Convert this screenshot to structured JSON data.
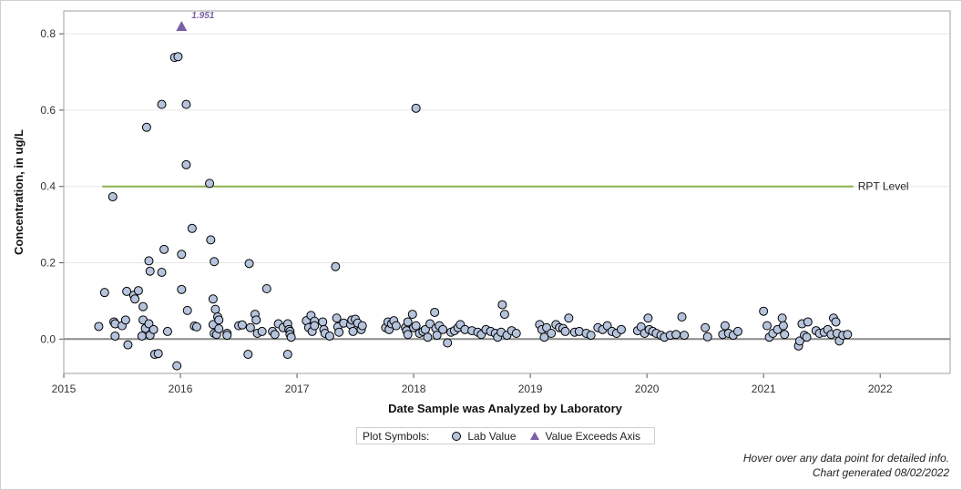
{
  "chart_data": {
    "type": "scatter",
    "xlabel": "Date Sample was Analyzed by Laboratory",
    "ylabel": "Concentration, in ug/L",
    "xlim": [
      2015.0,
      2022.6
    ],
    "ylim": [
      -0.09,
      0.86
    ],
    "x_ticks": [
      2015,
      2016,
      2017,
      2018,
      2019,
      2020,
      2021,
      2022
    ],
    "y_ticks": [
      0.0,
      0.2,
      0.4,
      0.6,
      0.8
    ],
    "y_tick_labels": [
      "0.0",
      "0.2",
      "0.4",
      "0.6",
      "0.8"
    ],
    "grid": "horizontal",
    "reference_line": {
      "label": "RPT Level",
      "y": 0.4,
      "x_start": 2015.33,
      "x_end": 2021.77,
      "color": "#8db04b"
    },
    "zero_line": 0.0,
    "exceeds_axis": [
      {
        "x": 2016.01,
        "y": 1.951,
        "label": "1.951"
      }
    ],
    "marker_fill": "#b5c3dc",
    "exceed_color": "#7a5fa8",
    "series": [
      {
        "name": "Lab Value",
        "points": [
          [
            2015.3,
            0.033
          ],
          [
            2015.35,
            0.122
          ],
          [
            2015.42,
            0.373
          ],
          [
            2015.43,
            0.045
          ],
          [
            2015.44,
            0.04
          ],
          [
            2015.44,
            0.008
          ],
          [
            2015.5,
            0.035
          ],
          [
            2015.53,
            0.05
          ],
          [
            2015.54,
            0.125
          ],
          [
            2015.55,
            -0.015
          ],
          [
            2015.6,
            0.115
          ],
          [
            2015.61,
            0.105
          ],
          [
            2015.64,
            0.127
          ],
          [
            2015.67,
            0.008
          ],
          [
            2015.68,
            0.085
          ],
          [
            2015.68,
            0.05
          ],
          [
            2015.7,
            0.028
          ],
          [
            2015.71,
            0.555
          ],
          [
            2015.73,
            0.205
          ],
          [
            2015.73,
            0.04
          ],
          [
            2015.74,
            0.178
          ],
          [
            2015.74,
            0.01
          ],
          [
            2015.77,
            0.025
          ],
          [
            2015.78,
            -0.04
          ],
          [
            2015.81,
            -0.038
          ],
          [
            2015.84,
            0.615
          ],
          [
            2015.84,
            0.175
          ],
          [
            2015.86,
            0.235
          ],
          [
            2015.89,
            0.02
          ],
          [
            2015.95,
            0.738
          ],
          [
            2015.97,
            -0.07
          ],
          [
            2015.98,
            0.74
          ],
          [
            2016.01,
            0.222
          ],
          [
            2016.01,
            0.13
          ],
          [
            2016.05,
            0.615
          ],
          [
            2016.05,
            0.457
          ],
          [
            2016.06,
            0.075
          ],
          [
            2016.1,
            0.29
          ],
          [
            2016.12,
            0.034
          ],
          [
            2016.14,
            0.032
          ],
          [
            2016.25,
            0.408
          ],
          [
            2016.26,
            0.26
          ],
          [
            2016.28,
            0.105
          ],
          [
            2016.28,
            0.038
          ],
          [
            2016.29,
            0.015
          ],
          [
            2016.29,
            0.203
          ],
          [
            2016.3,
            0.078
          ],
          [
            2016.31,
            0.012
          ],
          [
            2016.32,
            0.058
          ],
          [
            2016.33,
            0.027
          ],
          [
            2016.33,
            0.05
          ],
          [
            2016.4,
            0.015
          ],
          [
            2016.4,
            0.01
          ],
          [
            2016.5,
            0.035
          ],
          [
            2016.53,
            0.037
          ],
          [
            2016.58,
            -0.04
          ],
          [
            2016.59,
            0.198
          ],
          [
            2016.6,
            0.03
          ],
          [
            2016.64,
            0.065
          ],
          [
            2016.65,
            0.05
          ],
          [
            2016.66,
            0.015
          ],
          [
            2016.7,
            0.02
          ],
          [
            2016.74,
            0.132
          ],
          [
            2016.79,
            0.02
          ],
          [
            2016.81,
            0.012
          ],
          [
            2016.84,
            0.04
          ],
          [
            2016.88,
            0.03
          ],
          [
            2016.92,
            0.04
          ],
          [
            2016.92,
            -0.04
          ],
          [
            2016.93,
            0.025
          ],
          [
            2016.94,
            0.02
          ],
          [
            2016.94,
            0.012
          ],
          [
            2016.95,
            0.005
          ],
          [
            2017.08,
            0.048
          ],
          [
            2017.1,
            0.03
          ],
          [
            2017.12,
            0.062
          ],
          [
            2017.13,
            0.02
          ],
          [
            2017.15,
            0.047
          ],
          [
            2017.15,
            0.035
          ],
          [
            2017.22,
            0.045
          ],
          [
            2017.23,
            0.025
          ],
          [
            2017.24,
            0.015
          ],
          [
            2017.28,
            0.008
          ],
          [
            2017.33,
            0.19
          ],
          [
            2017.34,
            0.055
          ],
          [
            2017.35,
            0.032
          ],
          [
            2017.36,
            0.018
          ],
          [
            2017.4,
            0.042
          ],
          [
            2017.46,
            0.038
          ],
          [
            2017.47,
            0.05
          ],
          [
            2017.48,
            0.02
          ],
          [
            2017.5,
            0.052
          ],
          [
            2017.52,
            0.042
          ],
          [
            2017.55,
            0.025
          ],
          [
            2017.56,
            0.035
          ],
          [
            2017.76,
            0.03
          ],
          [
            2017.78,
            0.045
          ],
          [
            2017.79,
            0.025
          ],
          [
            2017.81,
            0.04
          ],
          [
            2017.83,
            0.048
          ],
          [
            2017.85,
            0.035
          ],
          [
            2017.93,
            0.03
          ],
          [
            2017.94,
            0.022
          ],
          [
            2017.95,
            0.045
          ],
          [
            2017.95,
            0.012
          ],
          [
            2017.99,
            0.065
          ],
          [
            2018.0,
            0.03
          ],
          [
            2018.02,
            0.035
          ],
          [
            2018.02,
            0.605
          ],
          [
            2018.05,
            0.015
          ],
          [
            2018.08,
            0.02
          ],
          [
            2018.1,
            0.025
          ],
          [
            2018.12,
            0.005
          ],
          [
            2018.14,
            0.04
          ],
          [
            2018.18,
            0.07
          ],
          [
            2018.19,
            0.028
          ],
          [
            2018.2,
            0.01
          ],
          [
            2018.22,
            0.035
          ],
          [
            2018.25,
            0.025
          ],
          [
            2018.29,
            -0.01
          ],
          [
            2018.32,
            0.018
          ],
          [
            2018.35,
            0.022
          ],
          [
            2018.38,
            0.03
          ],
          [
            2018.4,
            0.038
          ],
          [
            2018.44,
            0.025
          ],
          [
            2018.5,
            0.022
          ],
          [
            2018.55,
            0.018
          ],
          [
            2018.58,
            0.012
          ],
          [
            2018.62,
            0.025
          ],
          [
            2018.66,
            0.02
          ],
          [
            2018.7,
            0.015
          ],
          [
            2018.72,
            0.005
          ],
          [
            2018.75,
            0.018
          ],
          [
            2018.76,
            0.09
          ],
          [
            2018.78,
            0.065
          ],
          [
            2018.8,
            0.01
          ],
          [
            2018.84,
            0.022
          ],
          [
            2018.88,
            0.015
          ],
          [
            2019.08,
            0.038
          ],
          [
            2019.1,
            0.025
          ],
          [
            2019.12,
            0.005
          ],
          [
            2019.14,
            0.03
          ],
          [
            2019.18,
            0.015
          ],
          [
            2019.22,
            0.038
          ],
          [
            2019.25,
            0.03
          ],
          [
            2019.28,
            0.028
          ],
          [
            2019.3,
            0.02
          ],
          [
            2019.33,
            0.055
          ],
          [
            2019.38,
            0.018
          ],
          [
            2019.42,
            0.02
          ],
          [
            2019.48,
            0.015
          ],
          [
            2019.52,
            0.01
          ],
          [
            2019.58,
            0.03
          ],
          [
            2019.62,
            0.025
          ],
          [
            2019.66,
            0.035
          ],
          [
            2019.7,
            0.02
          ],
          [
            2019.74,
            0.015
          ],
          [
            2019.78,
            0.025
          ],
          [
            2019.92,
            0.022
          ],
          [
            2019.95,
            0.032
          ],
          [
            2019.98,
            0.015
          ],
          [
            2020.01,
            0.055
          ],
          [
            2020.02,
            0.025
          ],
          [
            2020.05,
            0.02
          ],
          [
            2020.08,
            0.015
          ],
          [
            2020.12,
            0.01
          ],
          [
            2020.15,
            0.005
          ],
          [
            2020.2,
            0.01
          ],
          [
            2020.25,
            0.012
          ],
          [
            2020.3,
            0.058
          ],
          [
            2020.32,
            0.01
          ],
          [
            2020.5,
            0.03
          ],
          [
            2020.52,
            0.006
          ],
          [
            2020.65,
            0.012
          ],
          [
            2020.67,
            0.035
          ],
          [
            2020.7,
            0.015
          ],
          [
            2020.74,
            0.01
          ],
          [
            2020.78,
            0.02
          ],
          [
            2021.0,
            0.073
          ],
          [
            2021.03,
            0.035
          ],
          [
            2021.05,
            0.005
          ],
          [
            2021.08,
            0.015
          ],
          [
            2021.12,
            0.025
          ],
          [
            2021.16,
            0.055
          ],
          [
            2021.17,
            0.035
          ],
          [
            2021.18,
            0.012
          ],
          [
            2021.3,
            -0.018
          ],
          [
            2021.31,
            -0.005
          ],
          [
            2021.33,
            0.04
          ],
          [
            2021.35,
            0.01
          ],
          [
            2021.37,
            0.005
          ],
          [
            2021.38,
            0.045
          ],
          [
            2021.45,
            0.022
          ],
          [
            2021.48,
            0.015
          ],
          [
            2021.52,
            0.018
          ],
          [
            2021.55,
            0.025
          ],
          [
            2021.58,
            0.012
          ],
          [
            2021.6,
            0.055
          ],
          [
            2021.62,
            0.045
          ],
          [
            2021.63,
            0.015
          ],
          [
            2021.65,
            -0.005
          ],
          [
            2021.68,
            0.01
          ],
          [
            2021.72,
            0.012
          ]
        ]
      }
    ]
  },
  "legend": {
    "title": "Plot Symbols:",
    "items": [
      "Lab Value",
      "Value Exceeds Axis"
    ]
  },
  "footer": {
    "hover_note": "Hover over any data point for detailed info.",
    "generated": "Chart generated 08/02/2022"
  }
}
